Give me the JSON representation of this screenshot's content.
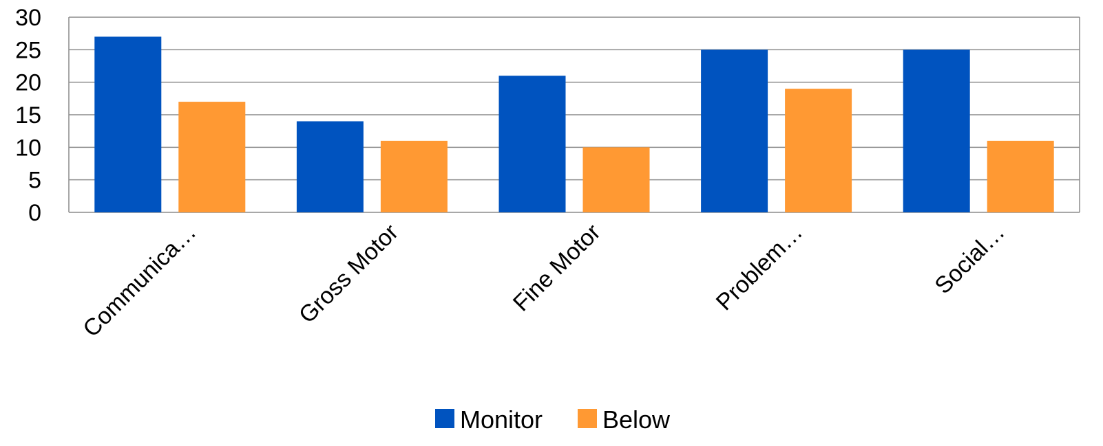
{
  "chart_data": {
    "type": "bar",
    "title": "",
    "xlabel": "",
    "ylabel": "",
    "categories": [
      "Communica…",
      "Gross Motor",
      "Fine Motor",
      "Problem…",
      "Social…"
    ],
    "series": [
      {
        "name": "Monitor",
        "color": "#0053BF",
        "values": [
          27,
          14,
          21,
          25,
          25
        ]
      },
      {
        "name": "Below",
        "color": "#FF9933",
        "values": [
          17,
          11,
          10,
          19,
          11
        ]
      }
    ],
    "ylim": [
      0,
      30
    ],
    "yticks": [
      0,
      5,
      10,
      15,
      20,
      25,
      30
    ],
    "grid": true,
    "legend_position": "bottom"
  }
}
